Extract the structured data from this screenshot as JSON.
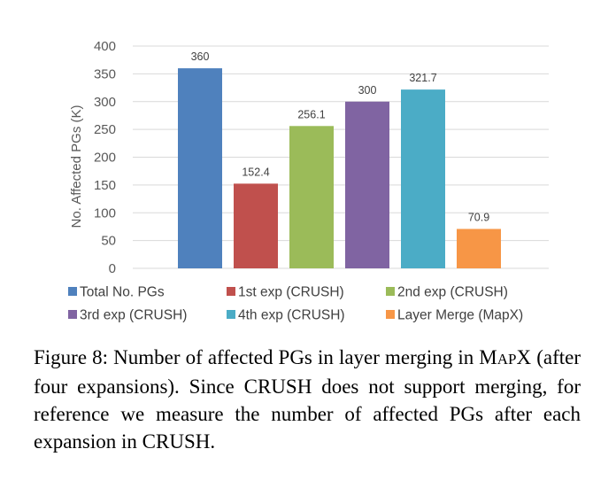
{
  "chart_data": {
    "type": "bar",
    "title": "",
    "xlabel": "",
    "ylabel": "No. Affected PGs (K)",
    "ylim": [
      0,
      400
    ],
    "yticks": [
      0,
      50,
      100,
      150,
      200,
      250,
      300,
      350,
      400
    ],
    "grid": true,
    "legend_position": "bottom",
    "series": [
      {
        "name": "Total No. PGs",
        "value": 360,
        "label": "360",
        "color": "#4F81BD"
      },
      {
        "name": "1st exp (CRUSH)",
        "value": 152.4,
        "label": "152.4",
        "color": "#C0504D"
      },
      {
        "name": "2nd exp (CRUSH)",
        "value": 256.1,
        "label": "256.1",
        "color": "#9BBB59"
      },
      {
        "name": "3rd exp (CRUSH)",
        "value": 300,
        "label": "300",
        "color": "#8064A2"
      },
      {
        "name": "4th exp (CRUSH)",
        "value": 321.7,
        "label": "321.7",
        "color": "#4BACC6"
      },
      {
        "name": "Layer Merge (MapX)",
        "value": 70.9,
        "label": "70.9",
        "color": "#F79646"
      }
    ]
  },
  "caption": {
    "prefix": "Figure 8: Number of affected PGs in layer merging in ",
    "name_M": "M",
    "name_AP": "AP",
    "name_X": "X",
    "rest": " (after four expansions).  Since CRUSH does not support merging, for reference we measure the number of affected PGs after each expansion in CRUSH."
  }
}
